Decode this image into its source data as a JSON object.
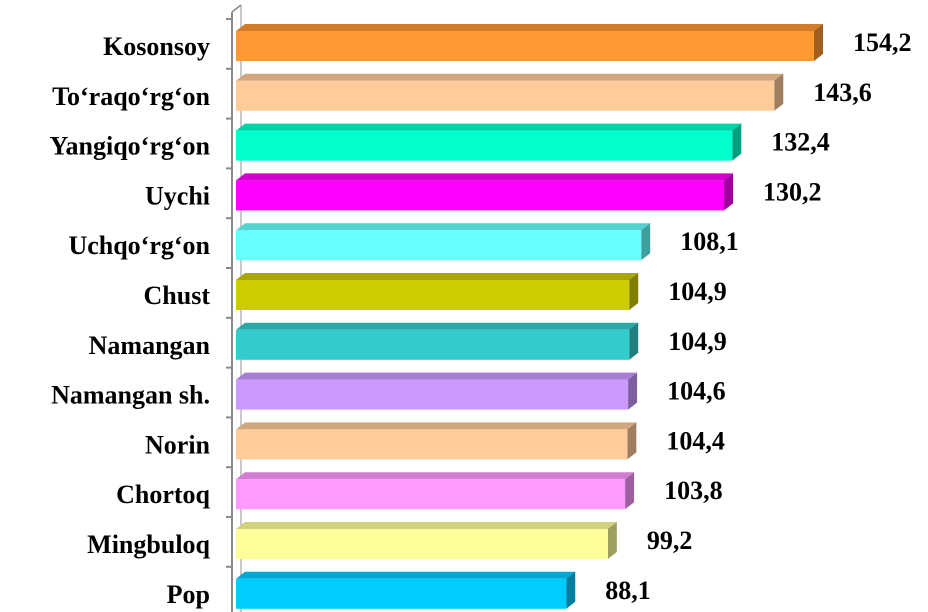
{
  "chart_data": {
    "type": "bar",
    "orientation": "horizontal",
    "style": "3d",
    "categories": [
      "Kosonsoy",
      "To‘raqo‘rg‘on",
      "Yangiqo‘rg‘on",
      "Uychi",
      "Uchqo‘rg‘on",
      "Chust",
      "Namangan",
      "Namangan sh.",
      "Norin",
      "Chortoq",
      "Mingbuloq",
      "Pop"
    ],
    "values": [
      154.2,
      143.6,
      132.4,
      130.2,
      108.1,
      104.9,
      104.9,
      104.6,
      104.4,
      103.8,
      99.2,
      88.1
    ],
    "value_labels": [
      "154,2",
      "143,6",
      "132,4",
      "130,2",
      "108,1",
      "104,9",
      "104,9",
      "104,6",
      "104,4",
      "103,8",
      "99,2",
      "88,1"
    ],
    "colors": [
      "#FF9933",
      "#FFCC99",
      "#00FFCC",
      "#FF00FF",
      "#66FFFF",
      "#CCCC00",
      "#33CCCC",
      "#CC99FF",
      "#FFCC99",
      "#FF99FF",
      "#FFFF99",
      "#00CCFF"
    ],
    "xlim": [
      0,
      160
    ],
    "title": "",
    "xlabel": "",
    "ylabel": "",
    "grid": false,
    "legend": "none"
  }
}
